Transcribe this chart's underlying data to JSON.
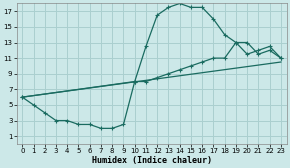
{
  "xlabel": "Humidex (Indice chaleur)",
  "bg_color": "#cce8e8",
  "grid_color": "#aacfcf",
  "line_color": "#1a6b60",
  "xlim": [
    -0.5,
    23.5
  ],
  "ylim": [
    0,
    18
  ],
  "xticks": [
    0,
    1,
    2,
    3,
    4,
    5,
    6,
    7,
    8,
    9,
    10,
    11,
    12,
    13,
    14,
    15,
    16,
    17,
    18,
    19,
    20,
    21,
    22,
    23
  ],
  "yticks": [
    1,
    3,
    5,
    7,
    9,
    11,
    13,
    15,
    17
  ],
  "curve1_x": [
    0,
    1,
    2,
    3,
    4,
    5,
    6,
    7,
    8,
    9,
    10,
    11,
    12,
    13,
    14,
    15,
    16,
    17,
    18,
    19,
    20,
    21,
    22,
    23
  ],
  "curve1_y": [
    6,
    5,
    4,
    3,
    3,
    2.5,
    2.5,
    2,
    2,
    2.5,
    8,
    12.5,
    16.5,
    17.5,
    18,
    17.5,
    17.5,
    16,
    14,
    13,
    11.5,
    12,
    12.5,
    11
  ],
  "curve2_x": [
    0,
    10,
    11,
    12,
    13,
    14,
    15,
    16,
    17,
    18,
    19,
    20,
    21,
    22,
    23
  ],
  "curve2_y": [
    6,
    8,
    8,
    8.5,
    9,
    9.5,
    10,
    10.5,
    11,
    11,
    13,
    13,
    11.5,
    12,
    11
  ],
  "curve3_x": [
    0,
    23
  ],
  "curve3_y": [
    6,
    10.5
  ]
}
